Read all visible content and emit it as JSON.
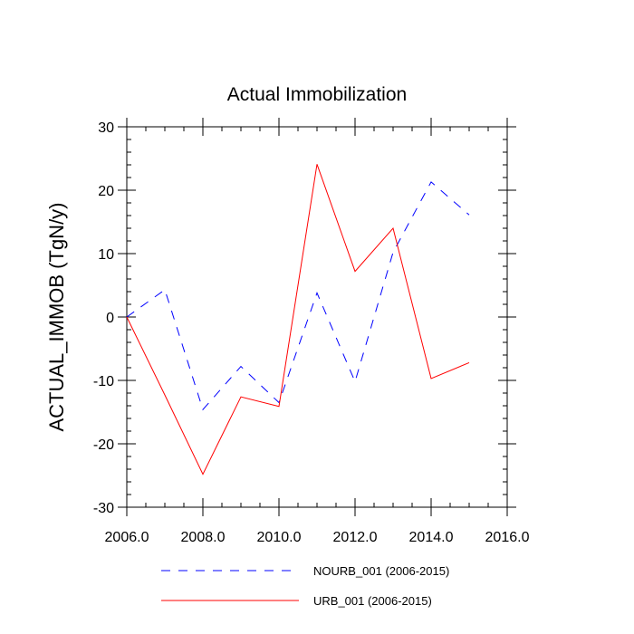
{
  "chart_data": {
    "type": "line",
    "title": "Actual Immobilization",
    "xlabel": "",
    "ylabel": "ACTUAL_IMMOB  (TgN/y)",
    "xlim": [
      2006,
      2016
    ],
    "ylim": [
      -30,
      30
    ],
    "xticks": [
      2006,
      2008,
      2010,
      2012,
      2014,
      2016
    ],
    "xtick_labels": [
      "2006.0",
      "2008.0",
      "2010.0",
      "2012.0",
      "2014.0",
      "2016.0"
    ],
    "yticks": [
      -30,
      -20,
      -10,
      0,
      10,
      20,
      30
    ],
    "ytick_labels": [
      "-30",
      "-20",
      "-10",
      "0",
      "10",
      "20",
      "30"
    ],
    "grid": false,
    "legend_position": "bottom",
    "series": [
      {
        "name": "NOURB_001 (2006-2015)",
        "color": "#0000ff",
        "style": "dashed",
        "x": [
          2006,
          2007,
          2008,
          2009,
          2010,
          2011,
          2012,
          2013,
          2014,
          2015
        ],
        "values": [
          0,
          4.3,
          -14.6,
          -7.8,
          -13.5,
          3.8,
          -10.2,
          10.2,
          21.3,
          16.1
        ]
      },
      {
        "name": "URB_001 (2006-2015)",
        "color": "#ff0000",
        "style": "solid",
        "x": [
          2006,
          2007,
          2008,
          2009,
          2010,
          2011,
          2012,
          2013,
          2014,
          2015
        ],
        "values": [
          0,
          -12.3,
          -24.8,
          -12.6,
          -14.1,
          24.1,
          7.2,
          14.0,
          -9.7,
          -7.2
        ]
      }
    ]
  }
}
